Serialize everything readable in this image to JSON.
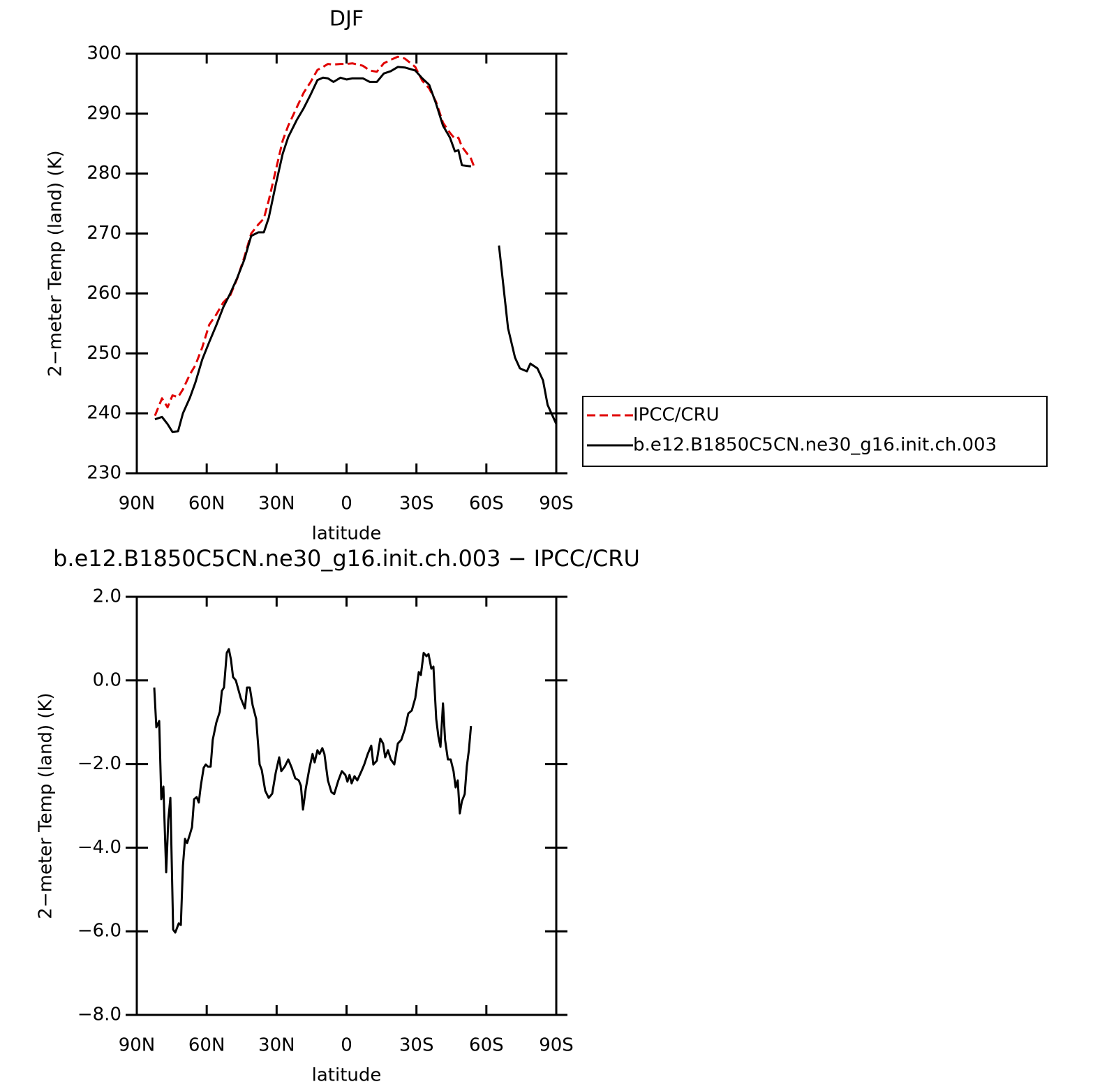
{
  "chart_data": [
    {
      "type": "line",
      "title": "DJF",
      "xlabel": "latitude",
      "ylabel": "2−meter Temp (land) (K)",
      "x": [
        82.2,
        79.2,
        76.8,
        74.7,
        72.3,
        70.2,
        67.2,
        64.9,
        61.9,
        58.9,
        55.9,
        52.9,
        49.9,
        46.9,
        43.9,
        40.9,
        37.9,
        35.5,
        33.4,
        30.4,
        27.4,
        25.0,
        21.4,
        18.4,
        15.4,
        12.5,
        10.1,
        8.0,
        5.6,
        2.6,
        -0.1,
        -2.5,
        -7.0,
        -10.0,
        -13.0,
        -16.0,
        -19.0,
        -22.0,
        -25.0,
        -29.5,
        -32.5,
        -35.5,
        -38.4,
        -41.4,
        -44.4,
        -46.5,
        -48.0,
        -49.5,
        -53.4,
        -54.9,
        -65.4,
        -69.3,
        -72.3,
        -74.4,
        -77.4,
        -78.9,
        -81.9,
        -84.3,
        -86.3,
        -89.9
      ],
      "series": [
        {
          "name": "IPCC/CRU",
          "color": "#e00000",
          "dashed": true,
          "values": [
            239.6,
            242.5,
            241.0,
            243.0,
            242.7,
            244.0,
            246.5,
            248.0,
            251.0,
            254.8,
            256.5,
            258.5,
            259.7,
            262.5,
            266,
            270,
            271.5,
            272.5,
            275.5,
            280.5,
            285.5,
            288,
            291,
            293.5,
            295.3,
            297.3,
            297.8,
            298.3,
            298.2,
            298.3,
            298.3,
            298.4,
            298.0,
            297.2,
            297.0,
            298.4,
            299.0,
            299.5,
            299.2,
            297.8,
            295.5,
            294.2,
            292.0,
            288.5,
            286.8,
            285.8,
            286,
            284.5,
            282.5,
            281.0,
            null,
            null,
            null,
            null,
            null,
            null,
            null,
            null,
            null,
            null
          ]
        },
        {
          "name": "b.e12.B1850C5CN.ne30_g16.init.ch.003",
          "color": "#000000",
          "dashed": false,
          "values": [
            239.0,
            239.4,
            238.2,
            236.9,
            237.0,
            240.0,
            242.6,
            245.1,
            249.0,
            251.9,
            254.7,
            257.7,
            260.0,
            262.6,
            265.6,
            269.6,
            270.2,
            270.2,
            272.6,
            278.1,
            283.3,
            286.1,
            288.9,
            290.9,
            293.2,
            295.6,
            296.0,
            295.9,
            295.3,
            296.0,
            295.7,
            295.9,
            295.9,
            295.3,
            295.3,
            296.7,
            297.1,
            297.8,
            297.7,
            297.2,
            295.9,
            294.8,
            291.7,
            288.0,
            286.0,
            283.7,
            283.9,
            281.4,
            281.2,
            null,
            268.0,
            254.2,
            249.3,
            247.5,
            247.0,
            248.3,
            247.5,
            245.5,
            241.4,
            238.3
          ]
        }
      ],
      "xlim": [
        90,
        -90
      ],
      "xticks": [
        {
          "value": 90,
          "label": "90N"
        },
        {
          "value": 60,
          "label": "60N"
        },
        {
          "value": 30,
          "label": "30N"
        },
        0,
        {
          "value": -30,
          "label": "30S"
        },
        {
          "value": -60,
          "label": "60S"
        },
        {
          "value": -90,
          "label": "90S"
        }
      ],
      "ylim": [
        230,
        300
      ],
      "yticks": [
        230,
        240,
        250,
        260,
        270,
        280,
        290,
        300
      ],
      "legend": "outside-right"
    },
    {
      "type": "line",
      "title": "b.e12.B1850C5CN.ne30_g16.init.ch.003 − IPCC/CRU",
      "xlabel": "latitude",
      "ylabel": "2−meter Temp (land) (K)",
      "x": [
        82.5,
        81.6,
        80.4,
        79.5,
        78.6,
        77.4,
        76.5,
        75.6,
        74.4,
        73.5,
        72.0,
        71.1,
        70.2,
        69.3,
        68.4,
        67.2,
        66.3,
        65.4,
        64.3,
        63.4,
        62.5,
        61.3,
        60.4,
        59.5,
        58.3,
        57.4,
        55.9,
        54.4,
        53.5,
        52.6,
        51.4,
        50.5,
        49.6,
        48.7,
        47.5,
        45.4,
        43.6,
        42.7,
        41.5,
        40.3,
        38.8,
        37.3,
        36.4,
        34.9,
        33.4,
        31.9,
        30.4,
        28.9,
        28.0,
        26.5,
        25.0,
        23.5,
        22.0,
        20.5,
        19.6,
        18.7,
        17.5,
        16.0,
        14.6,
        13.7,
        12.5,
        11.6,
        10.4,
        9.5,
        8.0,
        6.5,
        5.3,
        3.5,
        2.0,
        0.5,
        -0.4,
        -1.3,
        -2.2,
        -3.4,
        -4.6,
        -6.4,
        -7.6,
        -9.1,
        -10.6,
        -11.5,
        -13.0,
        -14.5,
        -15.7,
        -16.6,
        -17.8,
        -19.0,
        -20.5,
        -22.0,
        -23.5,
        -25.0,
        -26.5,
        -28.0,
        -29.5,
        -31.0,
        -31.9,
        -33.1,
        -34.3,
        -35.2,
        -36.4,
        -37.3,
        -38.5,
        -39.4,
        -40.3,
        -41.4,
        -42.3,
        -43.5,
        -44.7,
        -45.9,
        -46.8,
        -47.7,
        -48.6,
        -49.5,
        -50.7,
        -51.6,
        -52.5,
        -53.4
      ],
      "series": [
        {
          "color": "#000000",
          "dashed": false,
          "values": [
            -0.17,
            -1.12,
            -0.97,
            -2.84,
            -2.54,
            -4.59,
            -3.34,
            -2.81,
            -5.96,
            -6.03,
            -5.81,
            -5.85,
            -4.43,
            -3.79,
            -3.89,
            -3.68,
            -3.51,
            -2.84,
            -2.79,
            -2.92,
            -2.51,
            -2.09,
            -2.01,
            -2.06,
            -2.06,
            -1.42,
            -1.01,
            -0.75,
            -0.25,
            -0.17,
            0.66,
            0.75,
            0.5,
            0.08,
            0,
            -0.42,
            -0.67,
            -0.17,
            -0.17,
            -0.59,
            -0.92,
            -2.01,
            -2.14,
            -2.64,
            -2.81,
            -2.71,
            -2.21,
            -1.84,
            -2.17,
            -2.06,
            -1.89,
            -2.09,
            -2.34,
            -2.39,
            -2.52,
            -3.09,
            -2.59,
            -2.12,
            -1.76,
            -1.96,
            -1.67,
            -1.76,
            -1.62,
            -1.76,
            -2.39,
            -2.67,
            -2.72,
            -2.39,
            -2.17,
            -2.26,
            -2.42,
            -2.26,
            -2.46,
            -2.29,
            -2.39,
            -2.17,
            -2.01,
            -1.76,
            -1.56,
            -2.01,
            -1.92,
            -1.39,
            -1.51,
            -1.84,
            -1.67,
            -1.89,
            -2.01,
            -1.51,
            -1.42,
            -1.17,
            -0.79,
            -0.72,
            -0.42,
            0.2,
            0.13,
            0.66,
            0.58,
            0.63,
            0.28,
            0.33,
            -0.92,
            -1.34,
            -1.59,
            -0.55,
            -1.42,
            -1.89,
            -1.89,
            -2.17,
            -2.56,
            -2.39,
            -3.18,
            -2.89,
            -2.72,
            -2.06,
            -1.67,
            -1.09
          ]
        }
      ],
      "xlim": [
        90,
        -90
      ],
      "xticks": [
        {
          "value": 90,
          "label": "90N"
        },
        {
          "value": 60,
          "label": "60N"
        },
        {
          "value": 30,
          "label": "30N"
        },
        0,
        {
          "value": -30,
          "label": "30S"
        },
        {
          "value": -60,
          "label": "60S"
        },
        {
          "value": -90,
          "label": "90S"
        }
      ],
      "ylim": [
        -8,
        2
      ],
      "yticks": [
        {
          "value": -8,
          "label": "−8.0"
        },
        {
          "value": -6,
          "label": "−6.0"
        },
        {
          "value": -4,
          "label": "−4.0"
        },
        {
          "value": -2,
          "label": "−2.0"
        },
        {
          "value": 0,
          "label": "0.0"
        },
        {
          "value": 2,
          "label": "2.0"
        }
      ]
    }
  ]
}
